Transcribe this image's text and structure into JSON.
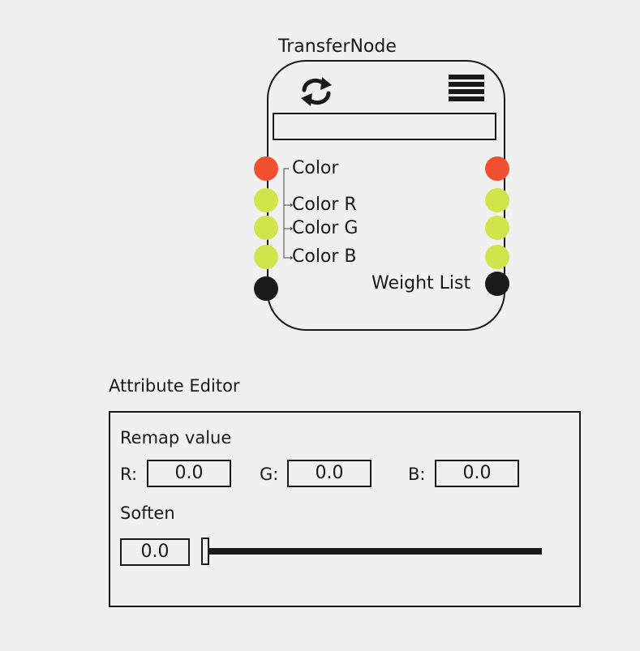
{
  "node": {
    "title": "TransferNode",
    "field_value": "",
    "inputs": [
      {
        "label": "Color",
        "color": "#f05030"
      },
      {
        "label": "Color R",
        "color": "#d2e44c"
      },
      {
        "label": "Color G",
        "color": "#d2e44c"
      },
      {
        "label": "Color B",
        "color": "#d2e44c"
      },
      {
        "label": "",
        "color": "#1a1a1a"
      }
    ],
    "outputs": [
      {
        "label": "",
        "color": "#f05030"
      },
      {
        "label": "",
        "color": "#d2e44c"
      },
      {
        "label": "",
        "color": "#d2e44c"
      },
      {
        "label": "",
        "color": "#d2e44c"
      },
      {
        "label": "Weight List",
        "color": "#1a1a1a"
      }
    ],
    "icons": {
      "left": "sync-icon",
      "right": "hamburger-menu-icon"
    }
  },
  "attribute_editor": {
    "title": "Attribute Editor",
    "remap_label": "Remap value",
    "r_label": "R:",
    "r_value": "0.0",
    "g_label": "G:",
    "g_value": "0.0",
    "b_label": "B:",
    "b_value": "0.0",
    "soften_label": "Soften",
    "soften_value": "0.0",
    "soften_slider_fraction": 0.0
  }
}
